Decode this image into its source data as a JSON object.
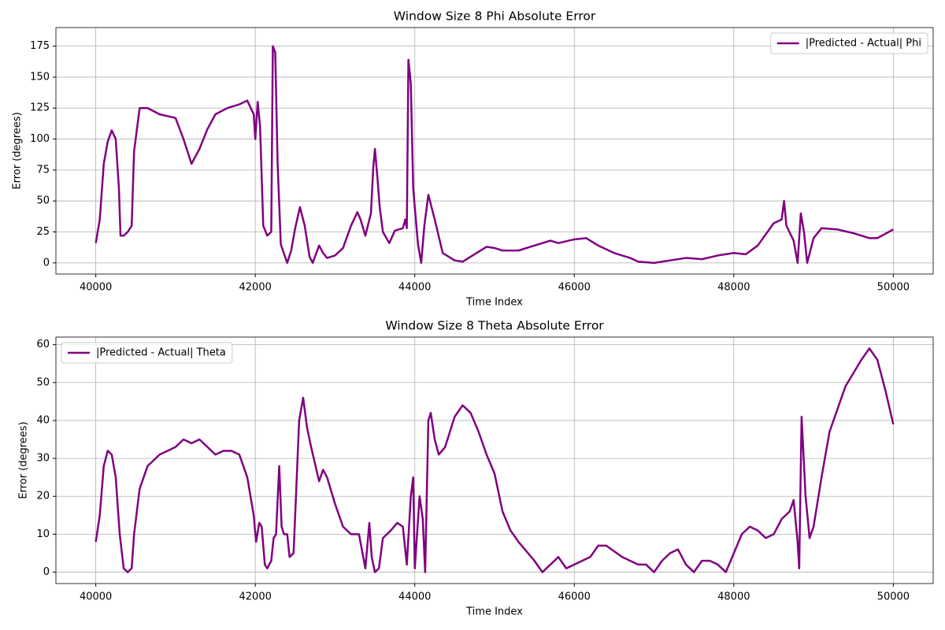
{
  "chart_data": [
    {
      "type": "line",
      "title": "Window Size 8 Phi Absolute Error",
      "xlabel": "Time Index",
      "ylabel": "Error (degrees)",
      "x": [
        40000,
        40050,
        40100,
        40150,
        40200,
        40250,
        40290,
        40310,
        40350,
        40400,
        40450,
        40480,
        40550,
        40650,
        40800,
        41000,
        41100,
        41200,
        41300,
        41400,
        41500,
        41650,
        41800,
        41900,
        41980,
        42000,
        42030,
        42060,
        42100,
        42150,
        42200,
        42220,
        42250,
        42280,
        42320,
        42400,
        42450,
        42500,
        42560,
        42620,
        42680,
        42720,
        42800,
        42850,
        42900,
        43000,
        43100,
        43200,
        43280,
        43320,
        43380,
        43450,
        43480,
        43500,
        43530,
        43560,
        43600,
        43680,
        43750,
        43850,
        43880,
        43900,
        43920,
        43950,
        43980,
        44040,
        44080,
        44120,
        44170,
        44250,
        44350,
        44500,
        44600,
        44750,
        44900,
        45000,
        45100,
        45300,
        45500,
        45700,
        45800,
        46000,
        46150,
        46300,
        46500,
        46700,
        46800,
        47000,
        47200,
        47400,
        47600,
        47800,
        48000,
        48150,
        48300,
        48500,
        48600,
        48630,
        48660,
        48750,
        48800,
        48840,
        48880,
        48920,
        49000,
        49100,
        49300,
        49500,
        49700,
        49800,
        50000
      ],
      "series": [
        {
          "name": "|Predicted - Actual| Phi",
          "color": "#800080",
          "values": [
            16,
            35,
            80,
            98,
            107,
            100,
            60,
            22,
            22,
            25,
            30,
            90,
            125,
            125,
            120,
            117,
            100,
            80,
            92,
            108,
            120,
            125,
            128,
            131,
            120,
            100,
            130,
            110,
            30,
            22,
            25,
            175,
            170,
            80,
            15,
            0,
            10,
            28,
            45,
            30,
            5,
            0,
            14,
            8,
            4,
            6,
            12,
            30,
            41,
            35,
            22,
            40,
            78,
            92,
            70,
            45,
            25,
            16,
            26,
            28,
            35,
            28,
            164,
            145,
            60,
            15,
            0,
            30,
            55,
            35,
            8,
            2,
            1,
            7,
            13,
            12,
            10,
            10,
            14,
            18,
            16,
            19,
            20,
            14,
            8,
            4,
            1,
            0,
            2,
            4,
            3,
            6,
            8,
            7,
            14,
            32,
            35,
            50,
            30,
            18,
            0,
            40,
            25,
            0,
            20,
            28,
            27,
            24,
            20,
            20,
            27
          ]
        }
      ],
      "xlim": [
        39500,
        50500
      ],
      "ylim": [
        -9,
        190
      ],
      "xticks": [
        40000,
        42000,
        44000,
        46000,
        48000,
        50000
      ],
      "yticks": [
        0,
        25,
        50,
        75,
        100,
        125,
        150,
        175
      ],
      "grid": true,
      "legend": "upper right"
    },
    {
      "type": "line",
      "title": "Window Size 8 Theta Absolute Error",
      "xlabel": "Time Index",
      "ylabel": "Error (degrees)",
      "x": [
        40000,
        40050,
        40100,
        40150,
        40200,
        40250,
        40300,
        40350,
        40400,
        40450,
        40480,
        40550,
        40650,
        40800,
        40900,
        41000,
        41100,
        41200,
        41300,
        41400,
        41500,
        41600,
        41700,
        41800,
        41900,
        41980,
        42010,
        42050,
        42080,
        42120,
        42150,
        42200,
        42230,
        42260,
        42300,
        42330,
        42360,
        42400,
        42430,
        42480,
        42550,
        42600,
        42650,
        42700,
        42800,
        42850,
        42900,
        43000,
        43100,
        43200,
        43300,
        43380,
        43430,
        43460,
        43500,
        43550,
        43600,
        43700,
        43780,
        43850,
        43900,
        43950,
        43980,
        44000,
        44060,
        44100,
        44130,
        44170,
        44200,
        44250,
        44300,
        44380,
        44500,
        44600,
        44700,
        44800,
        44900,
        45000,
        45100,
        45200,
        45300,
        45500,
        45600,
        45700,
        45800,
        45900,
        46000,
        46200,
        46300,
        46400,
        46600,
        46700,
        46800,
        46900,
        47000,
        47100,
        47200,
        47300,
        47400,
        47500,
        47600,
        47700,
        47800,
        47900,
        48000,
        48100,
        48200,
        48300,
        48400,
        48500,
        48600,
        48700,
        48750,
        48800,
        48820,
        48850,
        48900,
        48950,
        49000,
        49100,
        49200,
        49400,
        49600,
        49700,
        49800,
        49900,
        50000
      ],
      "series": [
        {
          "name": "|Predicted - Actual| Theta",
          "color": "#800080",
          "values": [
            8,
            15,
            28,
            32,
            31,
            25,
            10,
            1,
            0,
            1,
            10,
            22,
            28,
            31,
            32,
            33,
            35,
            34,
            35,
            33,
            31,
            32,
            32,
            31,
            25,
            15,
            8,
            13,
            12,
            2,
            1,
            3,
            9,
            10,
            28,
            12,
            10,
            10,
            4,
            5,
            40,
            46,
            38,
            33,
            24,
            27,
            25,
            18,
            12,
            10,
            10,
            1,
            13,
            4,
            0,
            1,
            9,
            11,
            13,
            12,
            2,
            20,
            25,
            1,
            20,
            14,
            0,
            40,
            42,
            35,
            31,
            33,
            41,
            44,
            42,
            37,
            31,
            26,
            16,
            11,
            8,
            3,
            0,
            2,
            4,
            1,
            2,
            4,
            7,
            7,
            4,
            3,
            2,
            2,
            0,
            3,
            5,
            6,
            2,
            0,
            3,
            3,
            2,
            0,
            5,
            10,
            12,
            11,
            9,
            10,
            14,
            16,
            19,
            8,
            1,
            41,
            20,
            9,
            12,
            25,
            37,
            49,
            56,
            59,
            56,
            48,
            39
          ]
        }
      ],
      "xlim": [
        39500,
        50500
      ],
      "ylim": [
        -3,
        62
      ],
      "xticks": [
        40000,
        42000,
        44000,
        46000,
        48000,
        50000
      ],
      "yticks": [
        0,
        10,
        20,
        30,
        40,
        50,
        60
      ],
      "grid": true,
      "legend": "upper left"
    }
  ]
}
